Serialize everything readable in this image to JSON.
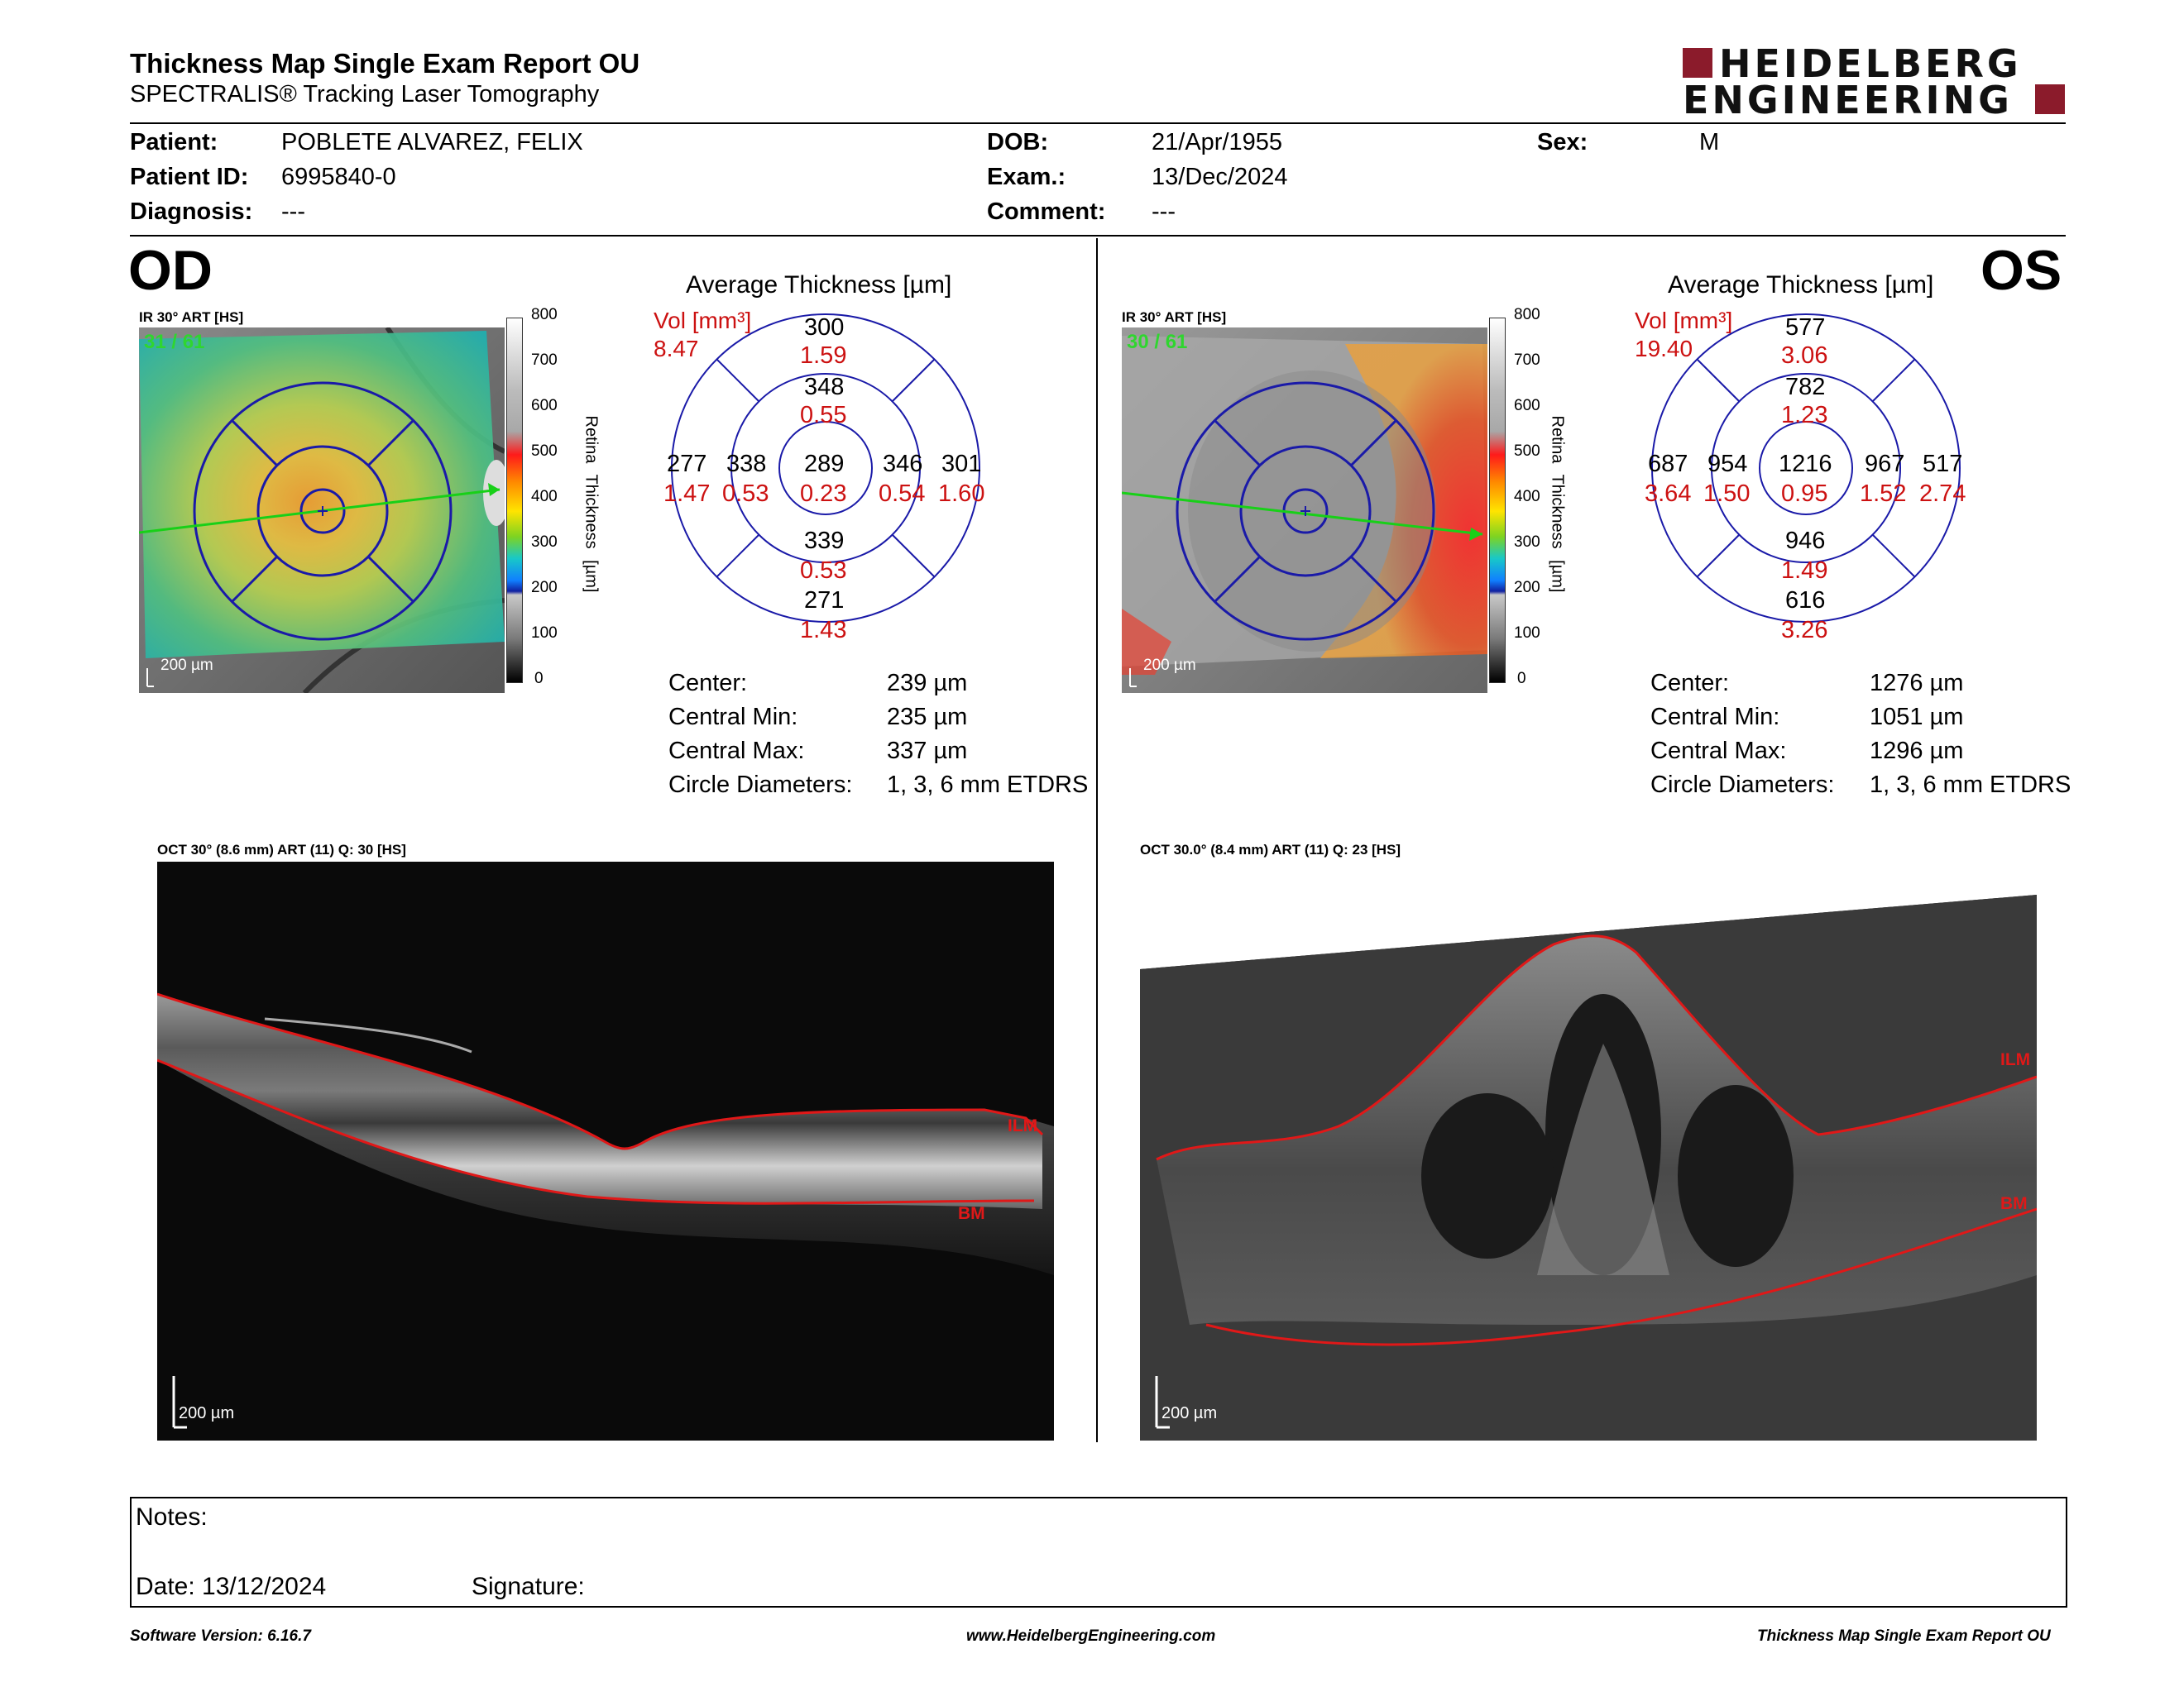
{
  "header": {
    "title": "Thickness Map Single Exam Report OU",
    "subtitle": "SPECTRALIS® Tracking Laser Tomography",
    "brand_line1": "HEIDELBERG",
    "brand_line2": "ENGINEERING",
    "brand_color": "#8b1b2b"
  },
  "patient": {
    "patient_label": "Patient:",
    "patient_value": "POBLETE ALVAREZ, FELIX",
    "id_label": "Patient ID:",
    "id_value": "6995840-0",
    "diagnosis_label": "Diagnosis:",
    "diagnosis_value": "---",
    "dob_label": "DOB:",
    "dob_value": "21/Apr/1955",
    "exam_label": "Exam.:",
    "exam_value": "13/Dec/2024",
    "comment_label": "Comment:",
    "comment_value": "---",
    "sex_label": "Sex:",
    "sex_value": "M"
  },
  "od": {
    "eye": "OD",
    "ir_label": "IR 30° ART [HS]",
    "frames": "31 / 61",
    "scale_label": "200 µm",
    "colorbar": {
      "ticks": [
        "800",
        "700",
        "600",
        "500",
        "400",
        "300",
        "200",
        "100",
        "0"
      ],
      "title": "Retina Thickness [µm]"
    },
    "avg_title": "Average Thickness [µm]",
    "vol_label": "Vol [mm³]",
    "vol_total": "8.47",
    "etdrs": {
      "center": {
        "t": "289",
        "v": "0.23"
      },
      "inner_sup": {
        "t": "348",
        "v": "0.55"
      },
      "inner_inf": {
        "t": "339",
        "v": "0.53"
      },
      "inner_left": {
        "t": "338",
        "v": "0.53"
      },
      "inner_right": {
        "t": "346",
        "v": "0.54"
      },
      "outer_sup": {
        "t": "300",
        "v": "1.59"
      },
      "outer_inf": {
        "t": "271",
        "v": "1.43"
      },
      "outer_left": {
        "t": "277",
        "v": "1.47"
      },
      "outer_right": {
        "t": "301",
        "v": "1.60"
      }
    },
    "stats": [
      {
        "label": "Center:",
        "value": "239 µm"
      },
      {
        "label": "Central Min:",
        "value": "235 µm"
      },
      {
        "label": "Central Max:",
        "value": "337 µm"
      },
      {
        "label": "Circle Diameters:",
        "value": "1, 3, 6 mm ETDRS"
      }
    ],
    "oct_label": "OCT 30° (8.6 mm) ART (11) Q: 30 [HS]",
    "ilm": "ILM",
    "bm": "BM",
    "oct_scale": "200 µm"
  },
  "os": {
    "eye": "OS",
    "ir_label": "IR 30° ART [HS]",
    "frames": "30 / 61",
    "scale_label": "200 µm",
    "colorbar": {
      "ticks": [
        "800",
        "700",
        "600",
        "500",
        "400",
        "300",
        "200",
        "100",
        "0"
      ],
      "title": "Retina Thickness [µm]"
    },
    "avg_title": "Average Thickness [µm]",
    "vol_label": "Vol [mm³]",
    "vol_total": "19.40",
    "etdrs": {
      "center": {
        "t": "1216",
        "v": "0.95"
      },
      "inner_sup": {
        "t": "782",
        "v": "1.23"
      },
      "inner_inf": {
        "t": "946",
        "v": "1.49"
      },
      "inner_left": {
        "t": "954",
        "v": "1.50"
      },
      "inner_right": {
        "t": "967",
        "v": "1.52"
      },
      "outer_sup": {
        "t": "577",
        "v": "3.06"
      },
      "outer_inf": {
        "t": "616",
        "v": "3.26"
      },
      "outer_left": {
        "t": "687",
        "v": "3.64"
      },
      "outer_right": {
        "t": "517",
        "v": "2.74"
      }
    },
    "stats": [
      {
        "label": "Center:",
        "value": "1276 µm"
      },
      {
        "label": "Central Min:",
        "value": "1051 µm"
      },
      {
        "label": "Central Max:",
        "value": "1296 µm"
      },
      {
        "label": "Circle Diameters:",
        "value": "1, 3, 6 mm ETDRS"
      }
    ],
    "oct_label": "OCT 30.0° (8.4 mm) ART (11) Q: 23 [HS]",
    "ilm": "ILM",
    "bm": "BM",
    "oct_scale": "200 µm"
  },
  "notes": {
    "notes_label": "Notes:",
    "date_label": "Date: 13/12/2024",
    "signature_label": "Signature:"
  },
  "footer": {
    "software": "Software Version: 6.16.7",
    "website": "www.HeidelbergEngineering.com",
    "report_name": "Thickness Map Single Exam Report OU"
  }
}
